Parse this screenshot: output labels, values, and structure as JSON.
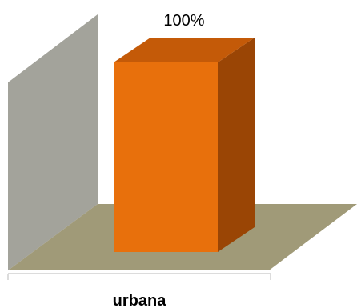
{
  "chart_data": {
    "type": "bar",
    "categories": [
      "urbana"
    ],
    "values": [
      100
    ],
    "data_labels": [
      "100%"
    ],
    "ylim": [
      0,
      100
    ],
    "grid": false,
    "legend": "none",
    "three_d": true
  },
  "colors": {
    "bar_front": "#e8700c",
    "bar_top": "#c45a08",
    "bar_side": "#9a4505",
    "back_wall": "#a3a39b",
    "floor": "#a09a78",
    "axis": "#b8b8b8"
  }
}
